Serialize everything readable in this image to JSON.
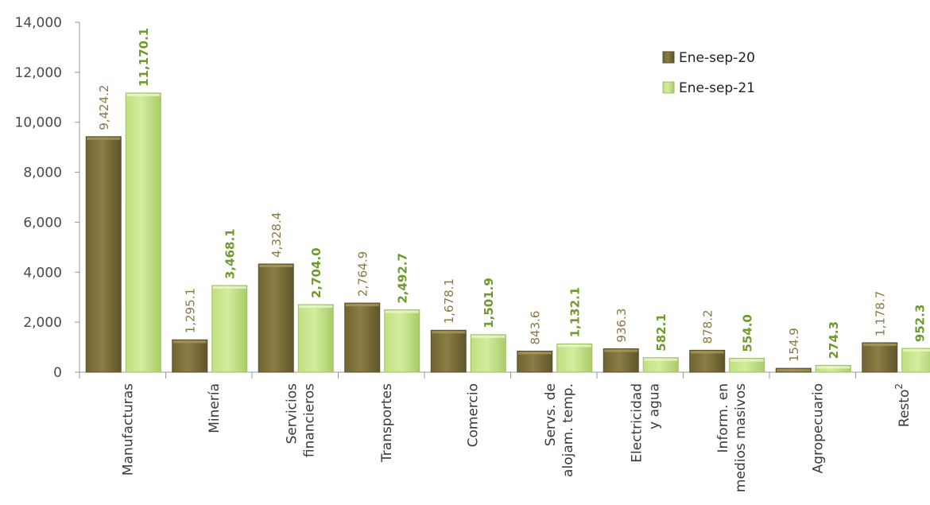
{
  "chart_data": {
    "type": "bar",
    "title": "",
    "xlabel": "",
    "ylabel": "",
    "ylim": [
      0,
      14000
    ],
    "yticks": [
      0,
      2000,
      4000,
      6000,
      8000,
      10000,
      12000,
      14000
    ],
    "ytick_labels": [
      "0",
      "2,000",
      "4,000",
      "6,000",
      "8,000",
      "10,000",
      "12,000",
      "14,000"
    ],
    "grid": false,
    "legend_position": "top-right",
    "categories": [
      [
        "Manufacturas"
      ],
      [
        "Minería"
      ],
      [
        "Servicios",
        "financieros"
      ],
      [
        "Transportes"
      ],
      [
        "Comercio"
      ],
      [
        "Servs. de",
        "alojam. temp."
      ],
      [
        "Electricidad",
        "y agua"
      ],
      [
        "Inform. en",
        "medios masivos"
      ],
      [
        "Agropecuario"
      ],
      [
        "Resto"
      ]
    ],
    "resto_superscript": "2",
    "series": [
      {
        "name": "Ene-sep-20",
        "color": "#8b7d44",
        "values": [
          9424.2,
          1295.1,
          4328.4,
          2764.9,
          1678.1,
          843.6,
          936.3,
          878.2,
          154.9,
          1178.7
        ],
        "labels": [
          "9,424.2",
          "1,295.1",
          "4,328.4",
          "2,764.9",
          "1,678.1",
          "843.6",
          "936.3",
          "878.2",
          "154.9",
          "1,178.7"
        ]
      },
      {
        "name": "Ene-sep-21",
        "color": "#d4ec9e",
        "values": [
          11170.1,
          3468.1,
          2704.0,
          2492.7,
          1501.9,
          1132.1,
          582.1,
          554.0,
          274.3,
          952.3
        ],
        "labels": [
          "11,170.1",
          "3,468.1",
          "2,704.0",
          "2,492.7",
          "1,501.9",
          "1,132.1",
          "582.1",
          "554.0",
          "274.3",
          "952.3"
        ]
      }
    ]
  }
}
